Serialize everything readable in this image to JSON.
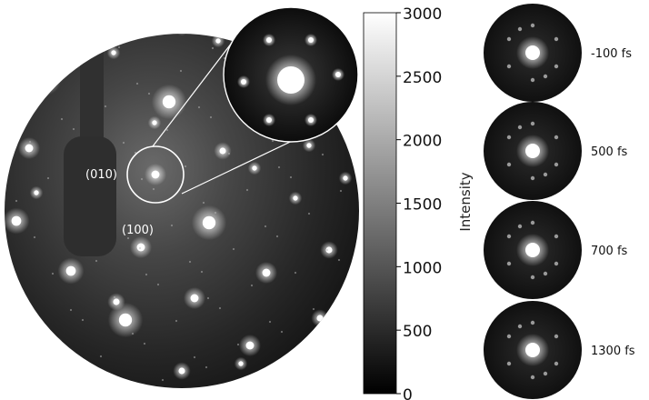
{
  "main_pattern": {
    "labels": [
      "(010)",
      "(100)"
    ]
  },
  "colorbar": {
    "label": "Intensity",
    "ticks": [
      "3000",
      "2500",
      "2000",
      "1500",
      "1000",
      "500",
      "0"
    ],
    "min": 0,
    "max": 3000
  },
  "time_series": {
    "items": [
      {
        "label": "-100 fs"
      },
      {
        "label": "500 fs"
      },
      {
        "label": "700 fs"
      },
      {
        "label": "1300 fs"
      }
    ]
  },
  "colors": {
    "background": "#ffffff",
    "pattern_dark": "#0d0d0d",
    "pattern_bright": "#ffffff",
    "zoom_outline": "#ffffff"
  }
}
